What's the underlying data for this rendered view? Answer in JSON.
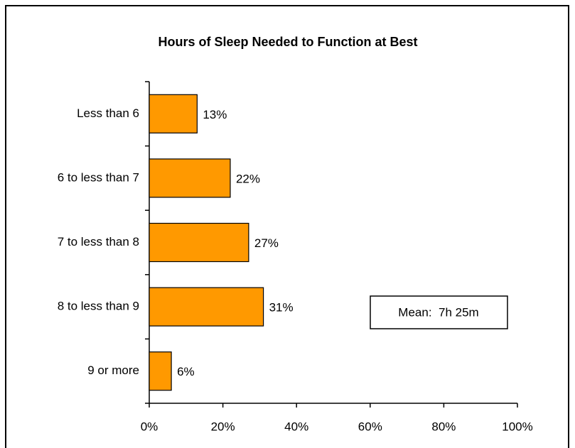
{
  "chart_data": {
    "type": "bar",
    "orientation": "horizontal",
    "title": "Hours of Sleep Needed to Function at Best",
    "categories": [
      "Less than 6",
      "6 to less than 7",
      "7 to less than 8",
      "8 to less than 9",
      "9 or more"
    ],
    "values": [
      13,
      22,
      27,
      31,
      6
    ],
    "value_labels": [
      "13%",
      "22%",
      "27%",
      "31%",
      "6%"
    ],
    "color": "#ff9900",
    "xlim": [
      0,
      100
    ],
    "xticks": [
      {
        "value": 0,
        "label": "0%"
      },
      {
        "value": 20,
        "label": "20%"
      },
      {
        "value": 40,
        "label": "40%"
      },
      {
        "value": 60,
        "label": "60%"
      },
      {
        "value": 80,
        "label": "80%"
      },
      {
        "value": 100,
        "label": "100%"
      }
    ],
    "grid": false,
    "annotation": "Mean:  7h 25m"
  }
}
